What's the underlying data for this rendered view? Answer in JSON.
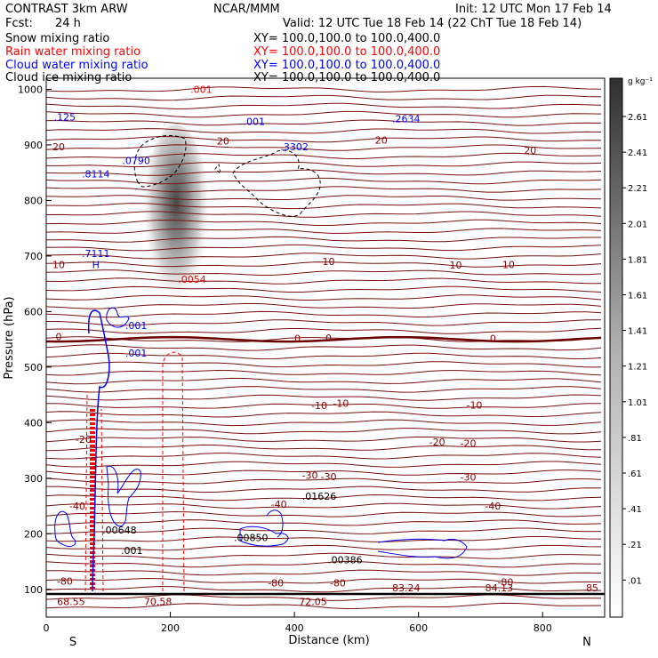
{
  "header": {
    "model": "CONTRAST  3km ARW",
    "org": "NCAR/MMM",
    "init": "Init: 12 UTC Mon 17 Feb 14",
    "fcst_label": "Fcst:",
    "fcst_value": "24 h",
    "valid": "Valid: 12 UTC Tue 18 Feb 14 (22 ChT Tue 18 Feb 14)"
  },
  "fields": [
    {
      "name": "Snow mixing ratio",
      "xy": "XY= 100.0,100.0 to 100.0,400.0",
      "color": "#000000"
    },
    {
      "name": "Rain water mixing ratio",
      "xy": "XY= 100.0,100.0 to 100.0,400.0",
      "color": "#ff0000"
    },
    {
      "name": "Cloud water mixing ratio",
      "xy": "XY= 100.0,100.0 to 100.0,400.0",
      "color": "#0000ff"
    },
    {
      "name": "Cloud ice mixing ratio",
      "xy": "XY= 100.0,100.0 to 100.0,400.0",
      "color": "#000000"
    }
  ],
  "colorbar": {
    "unit": "g kg⁻¹",
    "ticks": [
      "2.61",
      "2.41",
      "2.21",
      "2.01",
      "1.81",
      "1.61",
      "1.41",
      "1.21",
      "1.01",
      ".81",
      ".61",
      ".41",
      ".21",
      ".01"
    ]
  },
  "chart_data": {
    "type": "contour",
    "xlabel": "Distance (km)",
    "ylabel": "Pressure (hPa)",
    "xlim": [
      0,
      900
    ],
    "ylim": [
      1020,
      50
    ],
    "xticks": [
      0,
      200,
      400,
      600,
      800
    ],
    "yticks": [
      100,
      200,
      300,
      400,
      500,
      600,
      700,
      800,
      900,
      1000
    ],
    "x_end_labels": {
      "left": "S",
      "right": "N"
    },
    "temperature_contours": [
      {
        "level": "-80",
        "p": 115,
        "lx": 30
      },
      {
        "level": "-80",
        "p": 112,
        "lx": 370
      },
      {
        "level": "-80",
        "p": 112,
        "lx": 470
      },
      {
        "level": "-80",
        "p": 113,
        "lx": 740
      },
      {
        "level": "-40",
        "p": 250,
        "lx": 50
      },
      {
        "level": "-40",
        "p": 253,
        "lx": 375
      },
      {
        "level": "-40",
        "p": 250,
        "lx": 720
      },
      {
        "level": "-30",
        "p": 305,
        "lx": 425
      },
      {
        "level": "-30",
        "p": 303,
        "lx": 455
      },
      {
        "level": "-30",
        "p": 302,
        "lx": 680
      },
      {
        "level": "-20",
        "p": 370,
        "lx": 60
      },
      {
        "level": "-20",
        "p": 365,
        "lx": 630
      },
      {
        "level": "-20",
        "p": 363,
        "lx": 680
      },
      {
        "level": "-10",
        "p": 431,
        "lx": 440
      },
      {
        "level": "-10",
        "p": 435,
        "lx": 475
      },
      {
        "level": "-10",
        "p": 432,
        "lx": 690
      },
      {
        "level": "0",
        "p": 555,
        "lx": 20
      },
      {
        "level": "0",
        "p": 552,
        "lx": 405
      },
      {
        "level": "0",
        "p": 553,
        "lx": 455
      },
      {
        "level": "0",
        "p": 552,
        "lx": 720
      },
      {
        "level": "10",
        "p": 685,
        "lx": 20
      },
      {
        "level": "10",
        "p": 690,
        "lx": 455
      },
      {
        "level": "10",
        "p": 684,
        "lx": 660
      },
      {
        "level": "10",
        "p": 685,
        "lx": 745
      },
      {
        "level": "20",
        "p": 897,
        "lx": 20
      },
      {
        "level": "20",
        "p": 907,
        "lx": 285
      },
      {
        "level": "20",
        "p": 909,
        "lx": 540
      },
      {
        "level": "20",
        "p": 890,
        "lx": 780
      }
    ],
    "top_values": [
      {
        "text": "68.55",
        "x": 40,
        "p": 78
      },
      {
        "text": "70.58",
        "x": 180,
        "p": 78
      },
      {
        "text": "72.05",
        "x": 430,
        "p": 78
      },
      {
        "text": "83.24",
        "x": 580,
        "p": 103
      },
      {
        "text": "84.13",
        "x": 730,
        "p": 103
      },
      {
        "text": "85",
        "x": 880,
        "p": 103
      }
    ],
    "maxima": [
      {
        "label": ".00648",
        "x": 118,
        "p": 207,
        "color": "#000000"
      },
      {
        "label": ".001",
        "x": 138,
        "p": 170,
        "color": "#000000"
      },
      {
        "label": ".00850",
        "x": 330,
        "p": 193,
        "color": "#000000"
      },
      {
        "label": ".00386",
        "x": 482,
        "p": 153,
        "color": "#000000"
      },
      {
        "label": ".01626",
        "x": 440,
        "p": 268,
        "color": "#000000"
      },
      {
        "label": ".001",
        "x": 145,
        "p": 525,
        "color": "#0000ff"
      },
      {
        "label": ".001",
        "x": 145,
        "p": 575,
        "color": "#0000ff"
      },
      {
        "label": "H",
        "x": 80,
        "p": 685,
        "color": "#0000ff"
      },
      {
        "label": ".7111",
        "x": 80,
        "p": 705,
        "color": "#0000ff"
      },
      {
        "label": ".8114",
        "x": 80,
        "p": 848,
        "color": "#0000ff"
      },
      {
        "label": ".0790",
        "x": 145,
        "p": 872,
        "color": "#0000ff"
      },
      {
        "label": ".125",
        "x": 30,
        "p": 950,
        "color": "#0000ff"
      },
      {
        "label": ".3302",
        "x": 400,
        "p": 897,
        "color": "#0000ff"
      },
      {
        "label": ".001",
        "x": 335,
        "p": 942,
        "color": "#0000ff"
      },
      {
        "label": ".2634",
        "x": 580,
        "p": 947,
        "color": "#0000ff"
      },
      {
        "label": ".0054",
        "x": 235,
        "p": 658,
        "color": "#ff0000"
      },
      {
        "label": ".001",
        "x": 250,
        "p": 1000,
        "color": "#ff0000"
      }
    ]
  }
}
